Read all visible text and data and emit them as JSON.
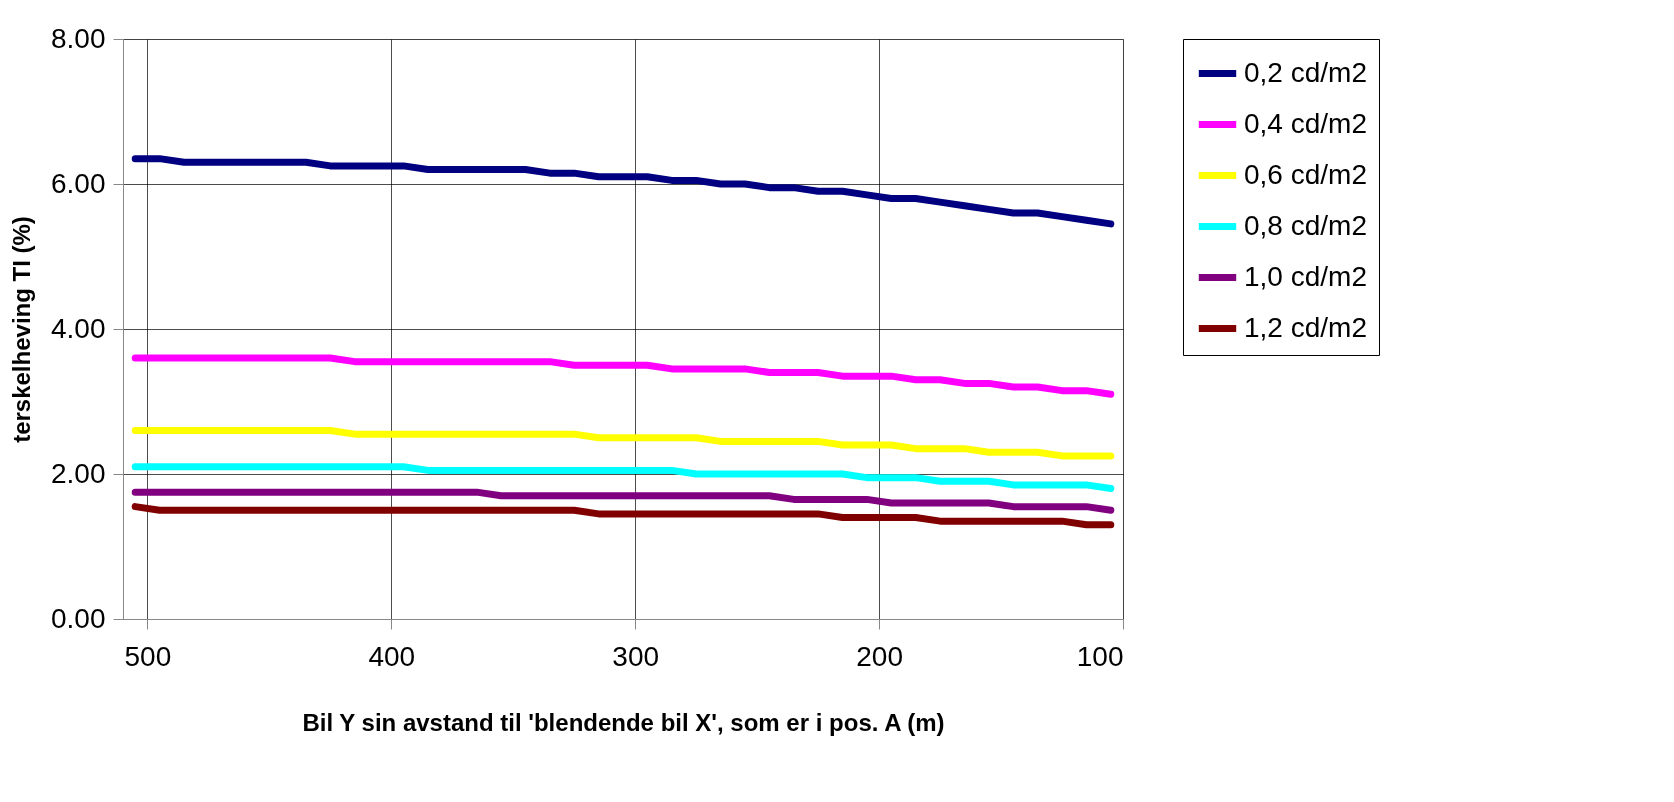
{
  "chart_data": {
    "type": "line",
    "xlabel": "Bil Y sin avstand til 'blendende bil X', som er i pos. A (m)",
    "ylabel": "terskelheving TI (%)",
    "x": [
      505,
      495,
      485,
      475,
      465,
      455,
      445,
      435,
      425,
      415,
      405,
      395,
      385,
      375,
      365,
      355,
      345,
      335,
      325,
      315,
      305,
      295,
      285,
      275,
      265,
      255,
      245,
      235,
      225,
      215,
      205,
      195,
      185,
      175,
      165,
      155,
      145,
      135,
      125,
      115,
      105
    ],
    "series": [
      {
        "name": "0,2 cd/m2",
        "color": "#000080",
        "values": [
          6.35,
          6.35,
          6.3,
          6.3,
          6.3,
          6.3,
          6.3,
          6.3,
          6.25,
          6.25,
          6.25,
          6.25,
          6.2,
          6.2,
          6.2,
          6.2,
          6.2,
          6.15,
          6.15,
          6.1,
          6.1,
          6.1,
          6.05,
          6.05,
          6.0,
          6.0,
          5.95,
          5.95,
          5.9,
          5.9,
          5.85,
          5.8,
          5.8,
          5.75,
          5.7,
          5.65,
          5.6,
          5.6,
          5.55,
          5.5,
          5.45
        ]
      },
      {
        "name": "0,4 cd/m2",
        "color": "#ff00ff",
        "values": [
          3.6,
          3.6,
          3.6,
          3.6,
          3.6,
          3.6,
          3.6,
          3.6,
          3.6,
          3.55,
          3.55,
          3.55,
          3.55,
          3.55,
          3.55,
          3.55,
          3.55,
          3.55,
          3.5,
          3.5,
          3.5,
          3.5,
          3.45,
          3.45,
          3.45,
          3.45,
          3.4,
          3.4,
          3.4,
          3.35,
          3.35,
          3.35,
          3.3,
          3.3,
          3.25,
          3.25,
          3.2,
          3.2,
          3.15,
          3.15,
          3.1
        ]
      },
      {
        "name": "0,6 cd/m2",
        "color": "#ffff00",
        "values": [
          2.6,
          2.6,
          2.6,
          2.6,
          2.6,
          2.6,
          2.6,
          2.6,
          2.6,
          2.55,
          2.55,
          2.55,
          2.55,
          2.55,
          2.55,
          2.55,
          2.55,
          2.55,
          2.55,
          2.5,
          2.5,
          2.5,
          2.5,
          2.5,
          2.45,
          2.45,
          2.45,
          2.45,
          2.45,
          2.4,
          2.4,
          2.4,
          2.35,
          2.35,
          2.35,
          2.3,
          2.3,
          2.3,
          2.25,
          2.25,
          2.25
        ]
      },
      {
        "name": "0,8 cd/m2",
        "color": "#00ffff",
        "values": [
          2.1,
          2.1,
          2.1,
          2.1,
          2.1,
          2.1,
          2.1,
          2.1,
          2.1,
          2.1,
          2.1,
          2.1,
          2.05,
          2.05,
          2.05,
          2.05,
          2.05,
          2.05,
          2.05,
          2.05,
          2.05,
          2.05,
          2.05,
          2.0,
          2.0,
          2.0,
          2.0,
          2.0,
          2.0,
          2.0,
          1.95,
          1.95,
          1.95,
          1.9,
          1.9,
          1.9,
          1.85,
          1.85,
          1.85,
          1.85,
          1.8
        ]
      },
      {
        "name": "1,0 cd/m2",
        "color": "#800080",
        "values": [
          1.75,
          1.75,
          1.75,
          1.75,
          1.75,
          1.75,
          1.75,
          1.75,
          1.75,
          1.75,
          1.75,
          1.75,
          1.75,
          1.75,
          1.75,
          1.7,
          1.7,
          1.7,
          1.7,
          1.7,
          1.7,
          1.7,
          1.7,
          1.7,
          1.7,
          1.7,
          1.7,
          1.65,
          1.65,
          1.65,
          1.65,
          1.6,
          1.6,
          1.6,
          1.6,
          1.6,
          1.55,
          1.55,
          1.55,
          1.55,
          1.5
        ]
      },
      {
        "name": "1,2 cd/m2",
        "color": "#800000",
        "values": [
          1.55,
          1.5,
          1.5,
          1.5,
          1.5,
          1.5,
          1.5,
          1.5,
          1.5,
          1.5,
          1.5,
          1.5,
          1.5,
          1.5,
          1.5,
          1.5,
          1.5,
          1.5,
          1.5,
          1.45,
          1.45,
          1.45,
          1.45,
          1.45,
          1.45,
          1.45,
          1.45,
          1.45,
          1.45,
          1.4,
          1.4,
          1.4,
          1.4,
          1.35,
          1.35,
          1.35,
          1.35,
          1.35,
          1.35,
          1.3,
          1.3
        ]
      }
    ],
    "xlim": [
      510,
      100
    ],
    "xticks": [
      500,
      400,
      300,
      200,
      100
    ],
    "ylim": [
      0,
      8
    ],
    "yticks": [
      {
        "value": 0,
        "label": "0.00"
      },
      {
        "value": 2,
        "label": "2.00"
      },
      {
        "value": 4,
        "label": "4.00"
      },
      {
        "value": 6,
        "label": "6.00"
      },
      {
        "value": 8,
        "label": "8.00"
      }
    ],
    "grid": true,
    "legend": "right",
    "line_style": "solid"
  }
}
